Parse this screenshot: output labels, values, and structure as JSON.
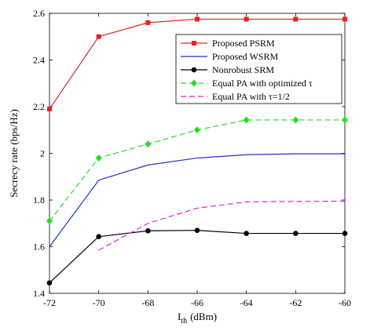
{
  "chart_data": {
    "type": "line",
    "xlabel": "I",
    "xlabel_sub": "th",
    "xlabel_unit": "(dBm)",
    "ylabel": "Secrecy rate (bps/Hz)",
    "xlim": [
      -72,
      -60
    ],
    "ylim": [
      1.4,
      2.6
    ],
    "xticks": [
      -72,
      -70,
      -68,
      -66,
      -64,
      -62,
      -60
    ],
    "yticks": [
      1.4,
      1.6,
      1.8,
      2,
      2.2,
      2.4,
      2.6
    ],
    "grid": false,
    "legend_position": "top-right",
    "series": [
      {
        "name": "Proposed PSRM",
        "color": "#e8211f",
        "dash": "solid",
        "marker": "square",
        "x": [
          -72,
          -70,
          -68,
          -66,
          -64,
          -62,
          -60
        ],
        "y": [
          2.19,
          2.5,
          2.56,
          2.575,
          2.575,
          2.575,
          2.575
        ]
      },
      {
        "name": "Proposed WSRM",
        "color": "#2233cc",
        "dash": "solid",
        "marker": "none",
        "x": [
          -72,
          -70,
          -68,
          -66,
          -64,
          -62,
          -60
        ],
        "y": [
          1.6,
          1.885,
          1.95,
          1.98,
          1.994,
          1.998,
          1.998
        ]
      },
      {
        "name": "Nonrobust SRM",
        "color": "#000000",
        "dash": "solid",
        "marker": "circle",
        "x": [
          -72,
          -70,
          -68,
          -66,
          -64,
          -62,
          -60
        ],
        "y": [
          1.445,
          1.643,
          1.668,
          1.67,
          1.657,
          1.657,
          1.657
        ]
      },
      {
        "name": "Equal PA with optimized τ",
        "color": "#22dd22",
        "dash": "dashed",
        "marker": "diamond",
        "x": [
          -72,
          -70,
          -68,
          -66,
          -64,
          -62,
          -60
        ],
        "y": [
          1.71,
          1.98,
          2.04,
          2.1,
          2.143,
          2.143,
          2.143
        ]
      },
      {
        "name": "Equal PA with τ=1/2",
        "color": "#e022e0",
        "dash": "dashed",
        "marker": "none",
        "x": [
          -70,
          -68,
          -66,
          -64,
          -62,
          -60
        ],
        "y": [
          1.585,
          1.7,
          1.765,
          1.792,
          1.794,
          1.795
        ]
      }
    ]
  }
}
